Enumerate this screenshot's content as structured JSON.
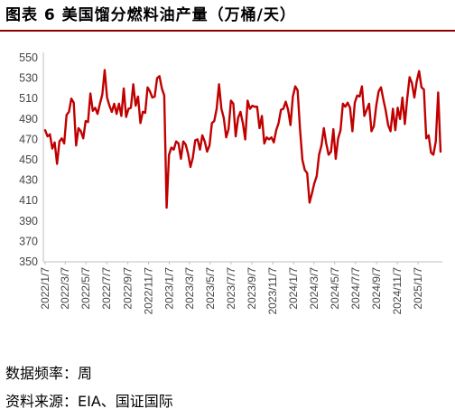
{
  "title": "图表 6 美国馏分燃料油产量（万桶/天）",
  "footnotes": {
    "frequency": "数据频率：周",
    "source": "资料来源：EIA、国证国际"
  },
  "colors": {
    "series": "#c00000",
    "title_rule": "#8b0000",
    "axis": "#bfbfbf"
  },
  "chart_data": {
    "type": "line",
    "title": "",
    "xlabel": "",
    "ylabel": "",
    "ylim": [
      350,
      550
    ],
    "y_ticks": [
      350,
      370,
      390,
      410,
      430,
      450,
      470,
      490,
      510,
      530,
      550
    ],
    "x_ticks": [
      "2022/1/7",
      "2022/3/7",
      "2022/5/7",
      "2022/7/7",
      "2022/9/7",
      "2022/11/7",
      "2023/1/7",
      "2023/3/7",
      "2023/5/7",
      "2023/7/7",
      "2023/9/7",
      "2023/11/7",
      "2024/1/7",
      "2024/3/7",
      "2024/5/7",
      "2024/7/7",
      "2024/9/7",
      "2024/11/7",
      "2025/1/7"
    ],
    "grid": false,
    "legend": "none",
    "series": [
      {
        "name": "",
        "points": [
          [
            "2022/1/7",
            479
          ],
          [
            "2022/1/14",
            473
          ],
          [
            "2022/1/21",
            475
          ],
          [
            "2022/1/28",
            461
          ],
          [
            "2022/2/4",
            467
          ],
          [
            "2022/2/11",
            446
          ],
          [
            "2022/2/18",
            468
          ],
          [
            "2022/2/25",
            471
          ],
          [
            "2022/3/4",
            466
          ],
          [
            "2022/3/11",
            494
          ],
          [
            "2022/3/18",
            497
          ],
          [
            "2022/3/25",
            510
          ],
          [
            "2022/4/1",
            506
          ],
          [
            "2022/4/8",
            464
          ],
          [
            "2022/4/15",
            481
          ],
          [
            "2022/4/22",
            478
          ],
          [
            "2022/4/29",
            471
          ],
          [
            "2022/5/6",
            488
          ],
          [
            "2022/5/13",
            487
          ],
          [
            "2022/5/20",
            515
          ],
          [
            "2022/5/27",
            498
          ],
          [
            "2022/6/3",
            501
          ],
          [
            "2022/6/10",
            495
          ],
          [
            "2022/6/17",
            505
          ],
          [
            "2022/6/24",
            514
          ],
          [
            "2022/7/1",
            538
          ],
          [
            "2022/7/8",
            511
          ],
          [
            "2022/7/15",
            503
          ],
          [
            "2022/7/22",
            497
          ],
          [
            "2022/7/29",
            505
          ],
          [
            "2022/8/5",
            495
          ],
          [
            "2022/8/12",
            505
          ],
          [
            "2022/8/19",
            493
          ],
          [
            "2022/8/26",
            520
          ],
          [
            "2022/9/2",
            492
          ],
          [
            "2022/9/9",
            500
          ],
          [
            "2022/9/16",
            501
          ],
          [
            "2022/9/23",
            524
          ],
          [
            "2022/9/30",
            503
          ],
          [
            "2022/10/7",
            512
          ],
          [
            "2022/10/14",
            486
          ],
          [
            "2022/10/21",
            497
          ],
          [
            "2022/10/28",
            496
          ],
          [
            "2022/11/4",
            521
          ],
          [
            "2022/11/11",
            517
          ],
          [
            "2022/11/18",
            511
          ],
          [
            "2022/11/25",
            512
          ],
          [
            "2022/12/2",
            530
          ],
          [
            "2022/12/9",
            532
          ],
          [
            "2022/12/16",
            520
          ],
          [
            "2022/12/23",
            513
          ],
          [
            "2022/12/30",
            403
          ],
          [
            "2023/1/6",
            455
          ],
          [
            "2023/1/13",
            462
          ],
          [
            "2023/1/20",
            460
          ],
          [
            "2023/1/27",
            468
          ],
          [
            "2023/2/3",
            466
          ],
          [
            "2023/2/10",
            451
          ],
          [
            "2023/2/17",
            468
          ],
          [
            "2023/2/24",
            465
          ],
          [
            "2023/3/3",
            456
          ],
          [
            "2023/3/10",
            443
          ],
          [
            "2023/3/17",
            452
          ],
          [
            "2023/3/24",
            469
          ],
          [
            "2023/3/31",
            470
          ],
          [
            "2023/4/7",
            460
          ],
          [
            "2023/4/14",
            474
          ],
          [
            "2023/4/21",
            468
          ],
          [
            "2023/4/28",
            458
          ],
          [
            "2023/5/5",
            464
          ],
          [
            "2023/5/12",
            486
          ],
          [
            "2023/5/19",
            488
          ],
          [
            "2023/5/26",
            500
          ],
          [
            "2023/6/2",
            524
          ],
          [
            "2023/6/9",
            500
          ],
          [
            "2023/6/16",
            491
          ],
          [
            "2023/6/23",
            472
          ],
          [
            "2023/6/30",
            480
          ],
          [
            "2023/7/7",
            508
          ],
          [
            "2023/7/14",
            505
          ],
          [
            "2023/7/21",
            473
          ],
          [
            "2023/7/28",
            491
          ],
          [
            "2023/8/4",
            497
          ],
          [
            "2023/8/11",
            486
          ],
          [
            "2023/8/18",
            470
          ],
          [
            "2023/8/25",
            508
          ],
          [
            "2023/9/1",
            500
          ],
          [
            "2023/9/8",
            503
          ],
          [
            "2023/9/15",
            502
          ],
          [
            "2023/9/22",
            502
          ],
          [
            "2023/9/29",
            481
          ],
          [
            "2023/10/6",
            493
          ],
          [
            "2023/10/13",
            466
          ],
          [
            "2023/10/20",
            472
          ],
          [
            "2023/10/27",
            470
          ],
          [
            "2023/11/3",
            472
          ],
          [
            "2023/11/10",
            467
          ],
          [
            "2023/11/17",
            479
          ],
          [
            "2023/11/24",
            486
          ],
          [
            "2023/12/1",
            499
          ],
          [
            "2023/12/8",
            500
          ],
          [
            "2023/12/15",
            507
          ],
          [
            "2023/12/22",
            499
          ],
          [
            "2023/12/29",
            484
          ],
          [
            "2024/1/5",
            512
          ],
          [
            "2024/1/12",
            522
          ],
          [
            "2024/1/19",
            518
          ],
          [
            "2024/1/26",
            480
          ],
          [
            "2024/2/2",
            450
          ],
          [
            "2024/2/9",
            440
          ],
          [
            "2024/2/16",
            437
          ],
          [
            "2024/2/23",
            408
          ],
          [
            "2024/3/1",
            417
          ],
          [
            "2024/3/8",
            427
          ],
          [
            "2024/3/15",
            434
          ],
          [
            "2024/3/22",
            455
          ],
          [
            "2024/3/29",
            464
          ],
          [
            "2024/4/5",
            481
          ],
          [
            "2024/4/12",
            466
          ],
          [
            "2024/4/19",
            455
          ],
          [
            "2024/4/26",
            458
          ],
          [
            "2024/5/3",
            480
          ],
          [
            "2024/5/10",
            451
          ],
          [
            "2024/5/17",
            471
          ],
          [
            "2024/5/24",
            479
          ],
          [
            "2024/5/31",
            505
          ],
          [
            "2024/6/7",
            502
          ],
          [
            "2024/6/14",
            506
          ],
          [
            "2024/6/21",
            501
          ],
          [
            "2024/6/28",
            478
          ],
          [
            "2024/7/5",
            506
          ],
          [
            "2024/7/12",
            513
          ],
          [
            "2024/7/19",
            512
          ],
          [
            "2024/7/26",
            522
          ],
          [
            "2024/8/2",
            493
          ],
          [
            "2024/8/9",
            499
          ],
          [
            "2024/8/16",
            505
          ],
          [
            "2024/8/23",
            478
          ],
          [
            "2024/8/30",
            483
          ],
          [
            "2024/9/6",
            503
          ],
          [
            "2024/9/13",
            517
          ],
          [
            "2024/9/20",
            521
          ],
          [
            "2024/9/27",
            509
          ],
          [
            "2024/10/4",
            498
          ],
          [
            "2024/10/11",
            484
          ],
          [
            "2024/10/18",
            478
          ],
          [
            "2024/10/25",
            500
          ],
          [
            "2024/11/1",
            479
          ],
          [
            "2024/11/8",
            501
          ],
          [
            "2024/11/15",
            490
          ],
          [
            "2024/11/22",
            511
          ],
          [
            "2024/11/29",
            485
          ],
          [
            "2024/12/6",
            510
          ],
          [
            "2024/12/13",
            531
          ],
          [
            "2024/12/20",
            525
          ],
          [
            "2024/12/27",
            511
          ],
          [
            "2025/1/3",
            527
          ],
          [
            "2025/1/10",
            537
          ],
          [
            "2025/1/17",
            521
          ],
          [
            "2025/1/24",
            519
          ],
          [
            "2025/1/31",
            471
          ],
          [
            "2025/2/7",
            474
          ],
          [
            "2025/2/14",
            457
          ],
          [
            "2025/2/21",
            455
          ],
          [
            "2025/2/28",
            468
          ],
          [
            "2025/3/7",
            516
          ],
          [
            "2025/3/14",
            458
          ]
        ]
      }
    ]
  }
}
